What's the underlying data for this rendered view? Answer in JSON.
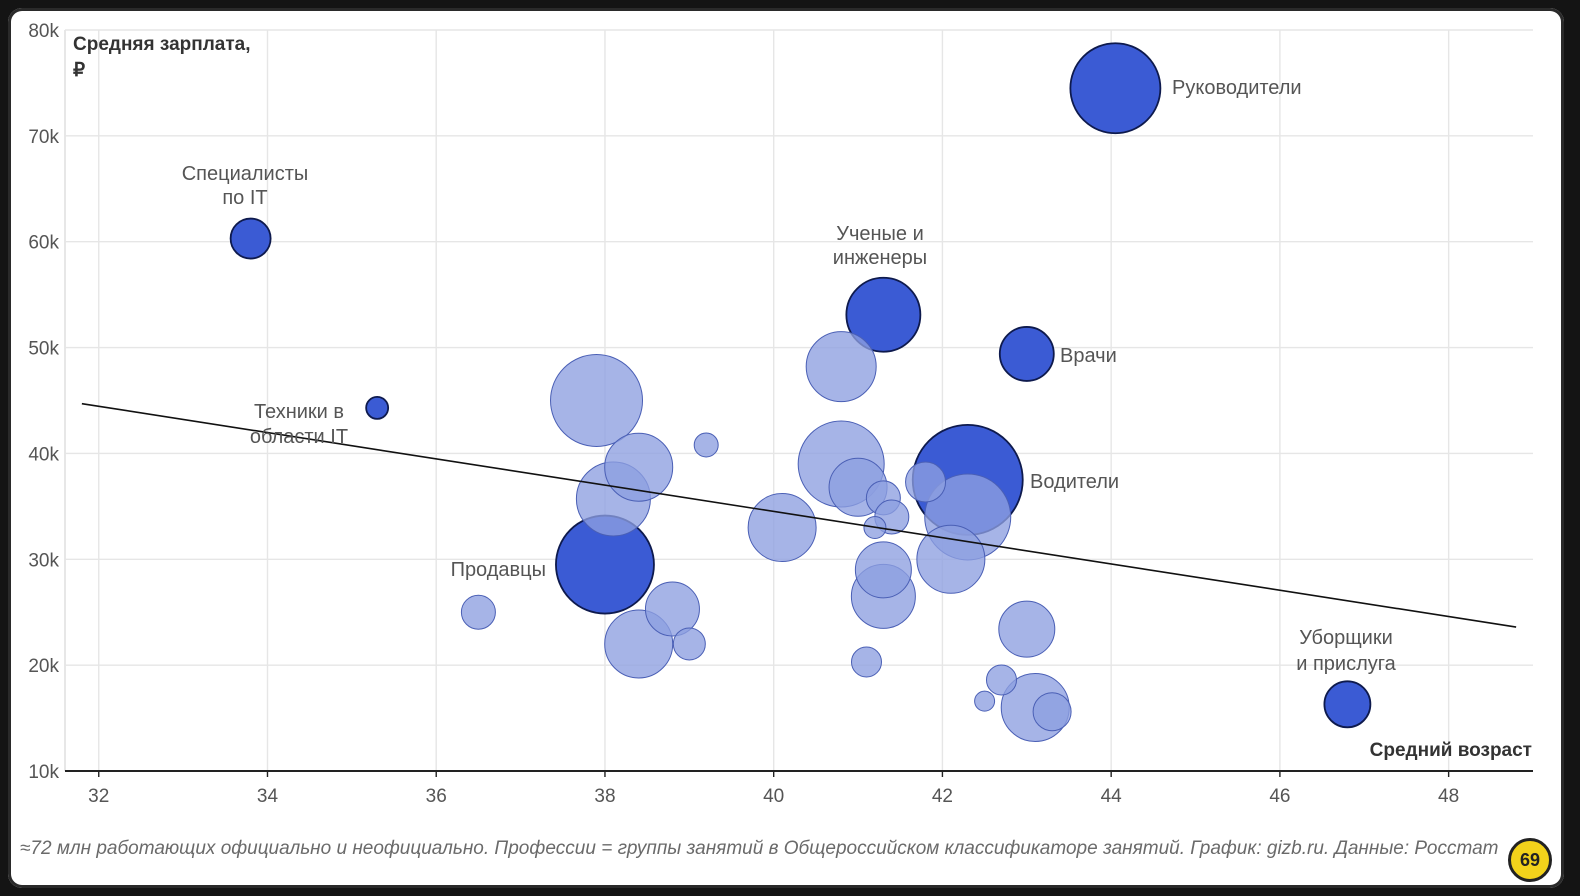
{
  "chart_data": {
    "type": "scatter",
    "subtype": "bubble",
    "ylabel": "Средняя зарплата, ₽",
    "xlabel": "Средний возраст",
    "xlim": [
      31.6,
      49
    ],
    "ylim": [
      10000,
      80000
    ],
    "x_ticks": [
      32,
      34,
      36,
      38,
      40,
      42,
      44,
      46,
      48
    ],
    "y_ticks": [
      {
        "value": 10000,
        "label": "10k"
      },
      {
        "value": 20000,
        "label": "20k"
      },
      {
        "value": 30000,
        "label": "30k"
      },
      {
        "value": 40000,
        "label": "40k"
      },
      {
        "value": 50000,
        "label": "50k"
      },
      {
        "value": 60000,
        "label": "60k"
      },
      {
        "value": 70000,
        "label": "70k"
      },
      {
        "value": 80000,
        "label": "80k"
      }
    ],
    "grid": true,
    "colors": {
      "highlight": "#3b5bd4",
      "other": "#8d9fe0",
      "stroke_highlight": "#0e1a4d",
      "stroke_other": "#4a5fb5",
      "trend": "#111111"
    },
    "trend_line": {
      "x": [
        31.8,
        48.8
      ],
      "y": [
        44700,
        23600
      ]
    },
    "points": [
      {
        "label": "Руководители",
        "x": 44.05,
        "y": 74500,
        "size": 45,
        "highlight": true
      },
      {
        "label": "Специалисты по IT",
        "x": 33.8,
        "y": 60300,
        "size": 20,
        "highlight": true
      },
      {
        "label": "Ученые и инженеры",
        "x": 41.3,
        "y": 53100,
        "size": 37,
        "highlight": true
      },
      {
        "label": "Врачи",
        "x": 43.0,
        "y": 49400,
        "size": 27,
        "highlight": true
      },
      {
        "label": "Техники в области IT",
        "x": 35.3,
        "y": 44300,
        "size": 11,
        "highlight": true
      },
      {
        "label": "Водители",
        "x": 42.3,
        "y": 37500,
        "size": 55,
        "highlight": true
      },
      {
        "label": "Продавцы",
        "x": 38.0,
        "y": 29500,
        "size": 49,
        "highlight": true
      },
      {
        "label": "Уборщики и прислуга",
        "x": 46.8,
        "y": 16300,
        "size": 23,
        "highlight": true
      },
      {
        "x": 37.9,
        "y": 45000,
        "size": 46,
        "highlight": false
      },
      {
        "x": 38.4,
        "y": 38700,
        "size": 34,
        "highlight": false
      },
      {
        "x": 38.1,
        "y": 35700,
        "size": 37,
        "highlight": false
      },
      {
        "x": 39.2,
        "y": 40800,
        "size": 12,
        "highlight": false
      },
      {
        "x": 38.8,
        "y": 25300,
        "size": 27,
        "highlight": false
      },
      {
        "x": 38.4,
        "y": 22000,
        "size": 34,
        "highlight": false
      },
      {
        "x": 39.0,
        "y": 22000,
        "size": 16,
        "highlight": false
      },
      {
        "x": 36.5,
        "y": 25000,
        "size": 17,
        "highlight": false
      },
      {
        "x": 40.1,
        "y": 33000,
        "size": 34,
        "highlight": false
      },
      {
        "x": 40.8,
        "y": 48200,
        "size": 35,
        "highlight": false
      },
      {
        "x": 40.8,
        "y": 39000,
        "size": 43,
        "highlight": false
      },
      {
        "x": 41.0,
        "y": 36800,
        "size": 29,
        "highlight": false
      },
      {
        "x": 41.3,
        "y": 35800,
        "size": 17,
        "highlight": false
      },
      {
        "x": 41.4,
        "y": 34000,
        "size": 17,
        "highlight": false
      },
      {
        "x": 41.2,
        "y": 33000,
        "size": 11,
        "highlight": false
      },
      {
        "x": 41.3,
        "y": 29000,
        "size": 28,
        "highlight": false
      },
      {
        "x": 41.3,
        "y": 26500,
        "size": 32,
        "highlight": false
      },
      {
        "x": 41.1,
        "y": 20300,
        "size": 15,
        "highlight": false
      },
      {
        "x": 41.8,
        "y": 37300,
        "size": 20,
        "highlight": false
      },
      {
        "x": 42.3,
        "y": 34000,
        "size": 43,
        "highlight": false
      },
      {
        "x": 42.1,
        "y": 30000,
        "size": 34,
        "highlight": false
      },
      {
        "x": 43.0,
        "y": 23400,
        "size": 28,
        "highlight": false
      },
      {
        "x": 42.7,
        "y": 18600,
        "size": 15,
        "highlight": false
      },
      {
        "x": 42.5,
        "y": 16600,
        "size": 10,
        "highlight": false
      },
      {
        "x": 43.1,
        "y": 16000,
        "size": 34,
        "highlight": false
      },
      {
        "x": 43.3,
        "y": 15600,
        "size": 19,
        "highlight": false
      }
    ]
  },
  "labels": {
    "it_specialists_1": "Специалисты",
    "it_specialists_2": "по IT",
    "scientists_1": "Ученые и",
    "scientists_2": "инженеры",
    "managers": "Руководители",
    "doctors": "Врачи",
    "it_tech_1": "Техники в",
    "it_tech_2": "области IT",
    "drivers": "Водители",
    "sellers": "Продавцы",
    "cleaners_1": "Уборщики",
    "cleaners_2": "и прислуга",
    "ytitle_1": "Средняя зарплата,",
    "ytitle_2": "₽",
    "xtitle": "Средний возраст"
  },
  "footnote": "≈72 млн работающих официально и неофициально. Профессии = группы занятий в Общероссийском классификаторе занятий. График: gizb.ru. Данные: Росстат",
  "badge": "69"
}
